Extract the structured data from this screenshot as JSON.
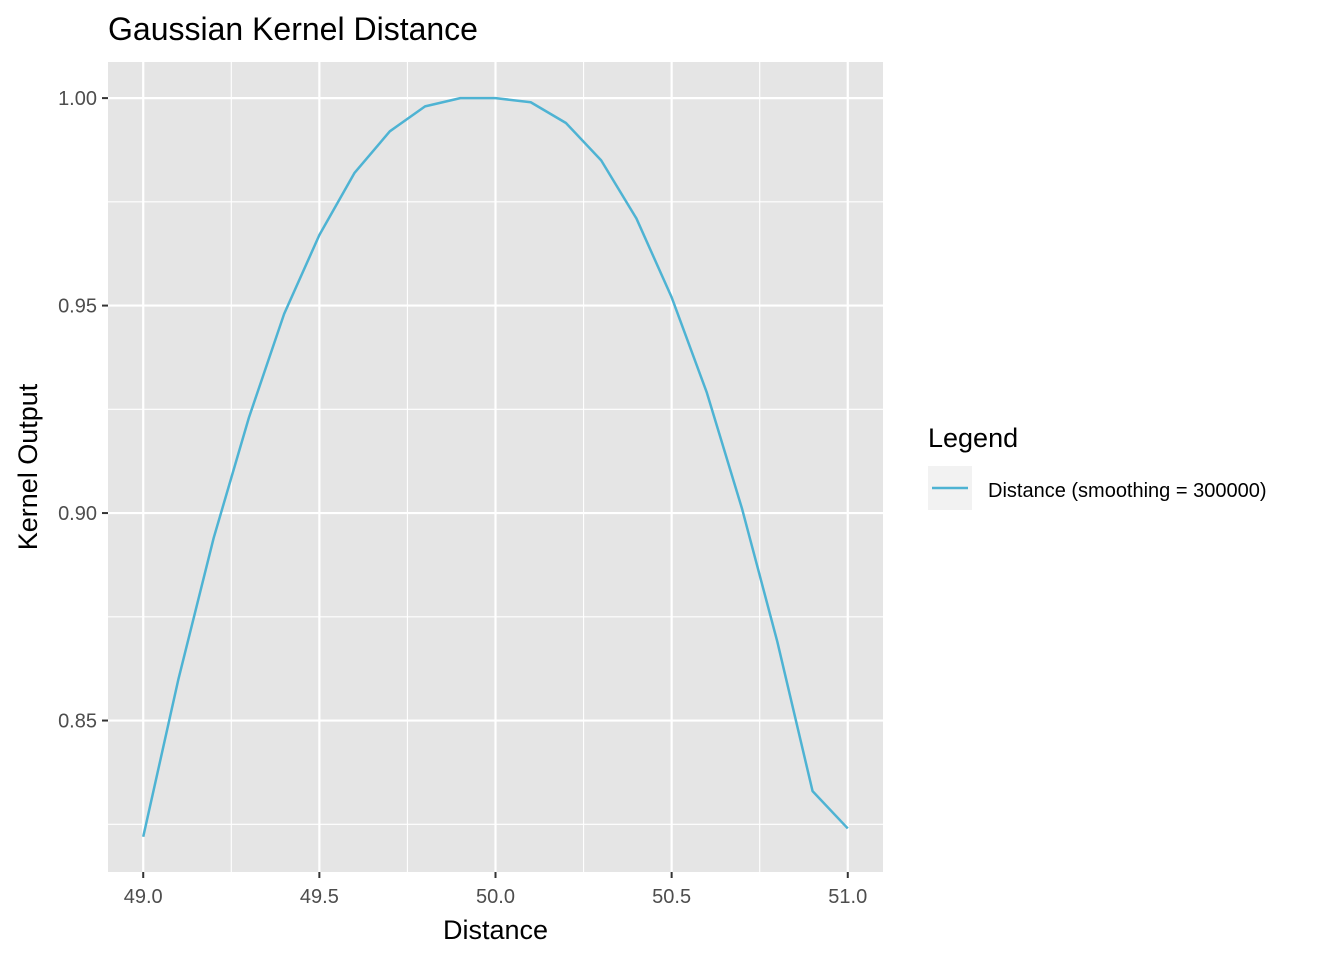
{
  "chart_data": {
    "type": "line",
    "title": "Gaussian Kernel Distance",
    "xlabel": "Distance",
    "ylabel": "Kernel Output",
    "xlim": [
      48.9,
      51.1
    ],
    "ylim": [
      0.8135,
      1.0087
    ],
    "x_ticks": [
      49.0,
      49.5,
      50.0,
      50.5,
      51.0
    ],
    "x_tick_labels": [
      "49.0",
      "49.5",
      "50.0",
      "50.5",
      "51.0"
    ],
    "x_minor_ticks": [
      49.25,
      49.75,
      50.25,
      50.75
    ],
    "y_ticks": [
      0.85,
      0.9,
      0.95,
      1.0
    ],
    "y_tick_labels": [
      "0.85",
      "0.90",
      "0.95",
      "1.00"
    ],
    "y_minor_ticks": [
      0.825,
      0.875,
      0.925,
      0.975
    ],
    "grid": true,
    "legend": {
      "title": "Legend",
      "placement": "right"
    },
    "series": [
      {
        "name": "Distance (smoothing = 300000)",
        "color": "#4eb3d3",
        "x": [
          49.0,
          49.1,
          49.2,
          49.3,
          49.4,
          49.5,
          49.6,
          49.7,
          49.8,
          49.9,
          50.0,
          50.1,
          50.2,
          50.3,
          50.4,
          50.5,
          50.6,
          50.7,
          50.8,
          50.9,
          51.0
        ],
        "y": [
          0.822,
          0.86,
          0.894,
          0.923,
          0.948,
          0.967,
          0.982,
          0.992,
          0.998,
          1.0,
          1.0,
          0.999,
          0.994,
          0.985,
          0.971,
          0.952,
          0.929,
          0.901,
          0.869,
          0.833,
          0.824
        ]
      }
    ]
  }
}
